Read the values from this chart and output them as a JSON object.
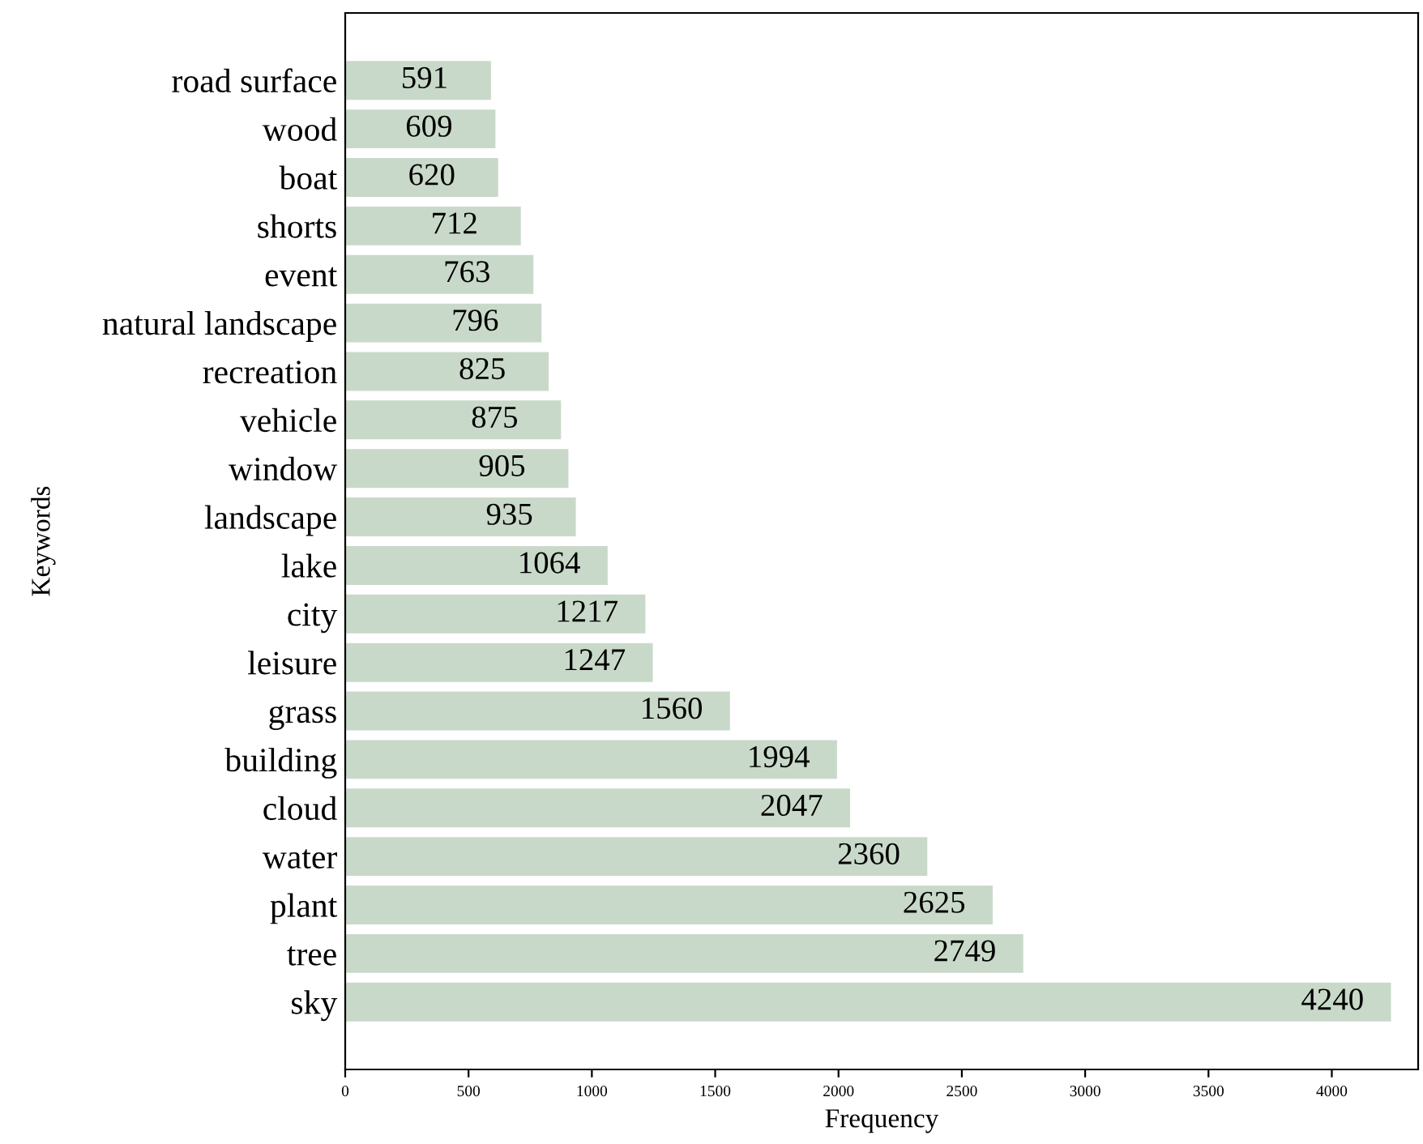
{
  "chart_data": {
    "type": "bar",
    "orientation": "horizontal",
    "xlabel": "Frequency",
    "ylabel": "Keywords",
    "categories": [
      "road surface",
      "wood",
      "boat",
      "shorts",
      "event",
      "natural landscape",
      "recreation",
      "vehicle",
      "window",
      "landscape",
      "lake",
      "city",
      "leisure",
      "grass",
      "building",
      "cloud",
      "water",
      "plant",
      "tree",
      "sky"
    ],
    "values": [
      591,
      609,
      620,
      712,
      763,
      796,
      825,
      875,
      905,
      935,
      1064,
      1217,
      1247,
      1560,
      1994,
      2047,
      2360,
      2625,
      2749,
      4240
    ],
    "color": "#c9d9c9",
    "xlim": [
      0,
      4350
    ],
    "xticks": [
      0,
      500,
      1000,
      1500,
      2000,
      2500,
      3000,
      3500,
      4000
    ],
    "data_labels": true,
    "grid": false
  }
}
